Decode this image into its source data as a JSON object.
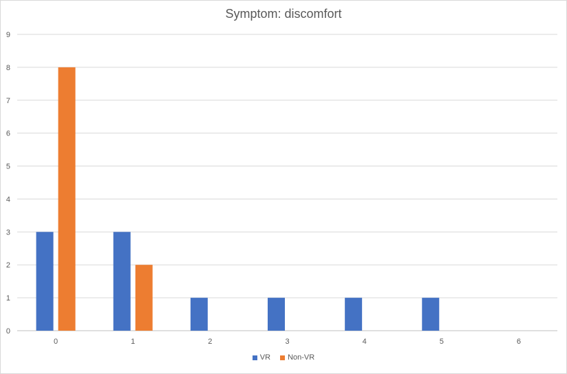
{
  "chart_data": {
    "type": "bar",
    "title": "Symptom: discomfort",
    "categories": [
      "0",
      "1",
      "2",
      "3",
      "4",
      "5",
      "6"
    ],
    "series": [
      {
        "name": "VR",
        "values": [
          3,
          3,
          1,
          1,
          1,
          1,
          0
        ],
        "color": "#4472c4"
      },
      {
        "name": "Non-VR",
        "values": [
          8,
          2,
          0,
          0,
          0,
          0,
          0
        ],
        "color": "#ed7d31"
      }
    ],
    "ylim": [
      0,
      9
    ],
    "yticks": [
      "0",
      "1",
      "2",
      "3",
      "4",
      "5",
      "6",
      "7",
      "8",
      "9"
    ],
    "grid": true,
    "legend_position": "bottom"
  }
}
